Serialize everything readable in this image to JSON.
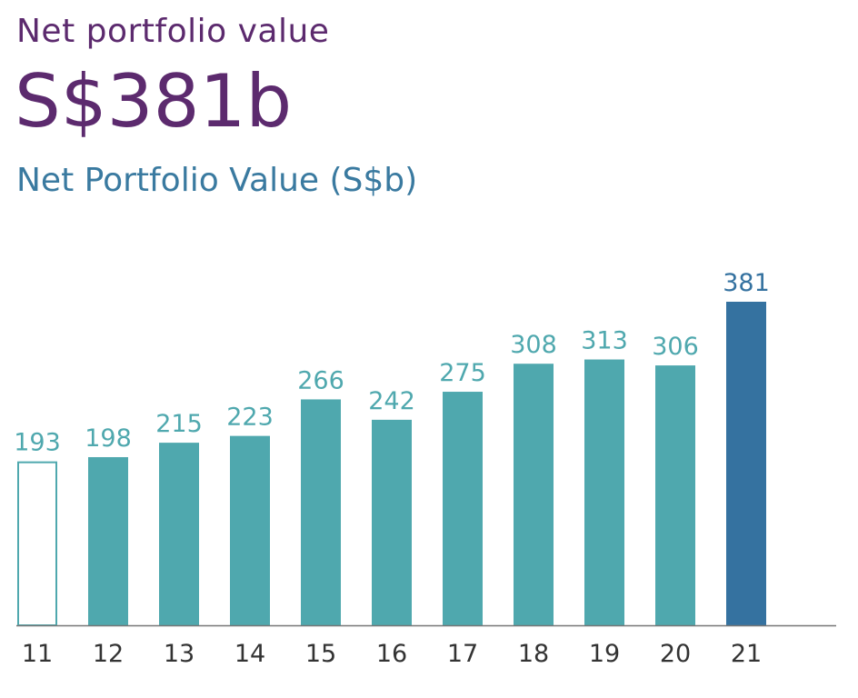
{
  "header": {
    "kicker": "Net portfolio value",
    "headline": "S$381b"
  },
  "chart_data": {
    "type": "bar",
    "title": "Net Portfolio Value (S$b)",
    "categories": [
      "11",
      "12",
      "13",
      "14",
      "15",
      "16",
      "17",
      "18",
      "19",
      "20",
      "21"
    ],
    "values": [
      193,
      198,
      215,
      223,
      266,
      242,
      275,
      308,
      313,
      306,
      381
    ],
    "xlabel": "",
    "ylabel": "",
    "ylim": [
      0,
      381
    ],
    "grid": false,
    "colors": {
      "outlined_bar": "#4fa8ae",
      "bar": "#4fa8ae",
      "highlight_bar": "#3572a0",
      "highlight_label": "#3572a0",
      "axis": "#777777"
    }
  }
}
